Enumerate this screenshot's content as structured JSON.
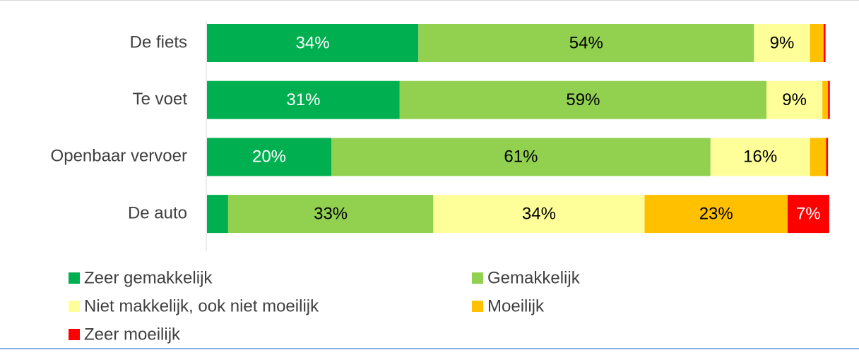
{
  "chart_data": {
    "type": "stacked-bar-horizontal",
    "categories": [
      "De fiets",
      "Te voet",
      "Openbaar vervoer",
      "De auto"
    ],
    "xlim": [
      0,
      100
    ],
    "series": [
      {
        "name": "Zeer gemakkelijk",
        "color": "#00b050",
        "label_color": "#ffffff",
        "values": [
          34,
          31,
          20,
          3.4
        ],
        "value_labels": [
          "34%",
          "31%",
          "20%",
          null
        ]
      },
      {
        "name": "Gemakkelijk",
        "color": "#92d050",
        "label_color": "#000000",
        "values": [
          54,
          59,
          61,
          33
        ],
        "value_labels": [
          "54%",
          "59%",
          "61%",
          "33%"
        ]
      },
      {
        "name": "Niet makkelijk, ook niet moeilijk",
        "color": "#ffff99",
        "label_color": "#000000",
        "values": [
          9,
          9,
          16,
          34
        ],
        "value_labels": [
          "9%",
          "9%",
          "16%",
          "34%"
        ]
      },
      {
        "name": "Moeilijk",
        "color": "#ffc000",
        "label_color": "#000000",
        "values": [
          2.2,
          0.9,
          2.6,
          23
        ],
        "value_labels": [
          null,
          null,
          null,
          "23%"
        ]
      },
      {
        "name": "Zeer moeilijk",
        "color": "#ff0000",
        "label_color": "#ffffff",
        "values": [
          0.3,
          0.3,
          0.3,
          6.7
        ],
        "value_labels": [
          null,
          null,
          null,
          "7%"
        ]
      }
    ]
  }
}
